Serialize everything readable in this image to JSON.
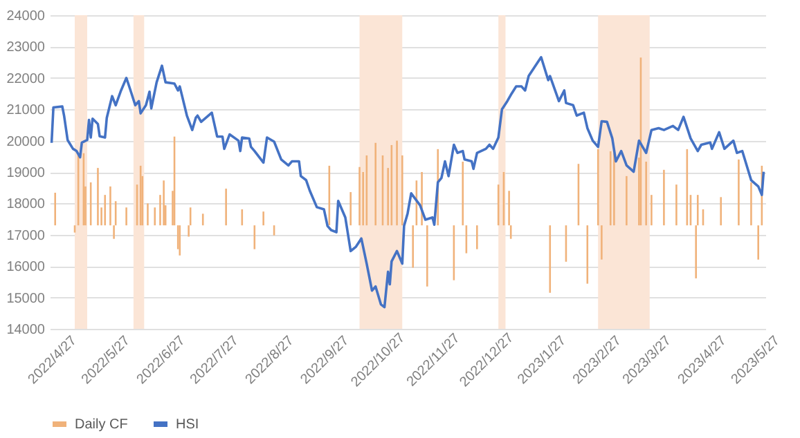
{
  "chart_data": {
    "type": "line",
    "xlim": [
      "2022-04-26",
      "2023-06-02"
    ],
    "xticks": [
      {
        "value": "2022-04-27",
        "label": "2022/4/27"
      },
      {
        "value": "2022-05-27",
        "label": "2022/5/27"
      },
      {
        "value": "2022-06-27",
        "label": "2022/6/27"
      },
      {
        "value": "2022-07-27",
        "label": "2022/7/27"
      },
      {
        "value": "2022-08-27",
        "label": "2022/8/27"
      },
      {
        "value": "2022-09-27",
        "label": "2022/9/27"
      },
      {
        "value": "2022-10-27",
        "label": "2022/10/27"
      },
      {
        "value": "2022-11-27",
        "label": "2022/11/27"
      },
      {
        "value": "2022-12-27",
        "label": "2022/12/27"
      },
      {
        "value": "2023-01-27",
        "label": "2023/1/27"
      },
      {
        "value": "2023-02-27",
        "label": "2023/2/27"
      },
      {
        "value": "2023-03-27",
        "label": "2023/3/27"
      },
      {
        "value": "2023-04-27",
        "label": "2023/4/27"
      },
      {
        "value": "2023-05-27",
        "label": "2023/5/27"
      }
    ],
    "ylim": [
      14000,
      24000
    ],
    "yticks": [
      14000,
      15000,
      16000,
      17000,
      18000,
      19000,
      20000,
      21000,
      22000,
      23000,
      24000
    ],
    "grid": "y",
    "legend": "bottom",
    "bands": [
      {
        "axis": "x",
        "from": "2022-05-10",
        "to": "2022-05-17",
        "color": "#fbe5d6"
      },
      {
        "axis": "x",
        "from": "2022-06-12",
        "to": "2022-06-18",
        "color": "#fbe5d6"
      },
      {
        "axis": "x",
        "from": "2022-10-17",
        "to": "2022-11-10",
        "color": "#fbe5d6"
      },
      {
        "axis": "x",
        "from": "2023-01-03",
        "to": "2023-01-07",
        "color": "#fbe5d6"
      },
      {
        "axis": "x",
        "from": "2023-02-28",
        "to": "2023-03-29",
        "color": "#fbe5d6"
      }
    ],
    "series": [
      {
        "name": "Daily CF",
        "type": "bar",
        "color": "#f0b27a",
        "x": [
          "2022-04-29",
          "2022-05-10",
          "2022-05-12",
          "2022-05-15",
          "2022-05-16",
          "2022-05-19",
          "2022-05-23",
          "2022-05-25",
          "2022-05-27",
          "2022-05-30",
          "2022-06-01",
          "2022-06-02",
          "2022-06-08",
          "2022-06-14",
          "2022-06-16",
          "2022-06-17",
          "2022-06-20",
          "2022-06-24",
          "2022-06-27",
          "2022-06-29",
          "2022-06-30",
          "2022-07-04",
          "2022-07-05",
          "2022-07-07",
          "2022-07-08",
          "2022-07-13",
          "2022-07-14",
          "2022-07-21",
          "2022-08-03",
          "2022-08-12",
          "2022-08-19",
          "2022-08-24",
          "2022-08-30",
          "2022-09-30",
          "2022-10-12",
          "2022-10-17",
          "2022-10-19",
          "2022-10-21",
          "2022-10-26",
          "2022-10-30",
          "2022-11-02",
          "2022-11-04",
          "2022-11-07",
          "2022-11-10",
          "2022-11-16",
          "2022-11-18",
          "2022-11-21",
          "2022-11-24",
          "2022-11-30",
          "2022-12-09",
          "2022-12-14",
          "2022-12-16",
          "2022-12-22",
          "2023-01-03",
          "2023-01-06",
          "2023-01-09",
          "2023-01-10",
          "2023-02-01",
          "2023-02-10",
          "2023-02-17",
          "2023-02-22",
          "2023-02-28",
          "2023-03-02",
          "2023-03-07",
          "2023-03-09",
          "2023-03-16",
          "2023-03-23",
          "2023-03-24",
          "2023-03-27",
          "2023-03-30",
          "2023-04-06",
          "2023-04-13",
          "2023-04-19",
          "2023-04-21",
          "2023-04-24",
          "2023-04-25",
          "2023-04-28",
          "2023-05-08",
          "2023-05-18",
          "2023-05-25",
          "2023-05-29",
          "2023-05-31"
        ],
        "base": [
          17300,
          17300,
          17300,
          17300,
          17300,
          17300,
          17300,
          17300,
          17300,
          17300,
          17300,
          17300,
          17300,
          17300,
          17300,
          17300,
          17300,
          17300,
          17300,
          17300,
          17300,
          17300,
          17300,
          17300,
          17300,
          17300,
          17300,
          17300,
          17300,
          17300,
          17300,
          17300,
          17300,
          17300,
          17300,
          17300,
          17300,
          17300,
          17300,
          17300,
          17300,
          17300,
          17300,
          17300,
          17300,
          17300,
          17300,
          17300,
          17300,
          17300,
          17300,
          17300,
          17300,
          17300,
          17300,
          17300,
          17300,
          17300,
          17300,
          17300,
          17300,
          17300,
          17300,
          17300,
          17300,
          17300,
          17300,
          17300,
          17300,
          17300,
          17300,
          17300,
          17300,
          17300,
          17300,
          17300,
          17300,
          17300,
          17300,
          17300,
          17300,
          17300
        ],
        "values": [
          1040,
          -230,
          2230,
          2300,
          1240,
          1370,
          1830,
          570,
          970,
          1240,
          -430,
          770,
          570,
          1300,
          1900,
          1570,
          700,
          570,
          970,
          1430,
          640,
          1100,
          2830,
          -760,
          -960,
          -360,
          570,
          370,
          1170,
          510,
          -760,
          440,
          -320,
          1900,
          1060,
          1860,
          1700,
          2230,
          2630,
          2230,
          1830,
          2560,
          2700,
          2230,
          -1350,
          1430,
          1700,
          -1950,
          2430,
          -1750,
          2030,
          -890,
          -760,
          1300,
          1700,
          1100,
          -430,
          -2150,
          -1160,
          1960,
          -1860,
          2430,
          -1090,
          2360,
          2300,
          1570,
          2160,
          5350,
          2030,
          970,
          1770,
          1300,
          2430,
          970,
          -1690,
          970,
          510,
          900,
          2100,
          1370,
          -1090,
          1900
        ]
      },
      {
        "name": "HSI",
        "color": "#4472c4",
        "x": [
          "2022-04-27",
          "2022-04-28",
          "2022-05-03",
          "2022-05-04",
          "2022-05-06",
          "2022-05-09",
          "2022-05-11",
          "2022-05-13",
          "2022-05-14",
          "2022-05-17",
          "2022-05-18",
          "2022-05-19",
          "2022-05-20",
          "2022-05-23",
          "2022-05-24",
          "2022-05-27",
          "2022-05-28",
          "2022-05-31",
          "2022-06-02",
          "2022-06-05",
          "2022-06-08",
          "2022-06-10",
          "2022-06-13",
          "2022-06-15",
          "2022-06-16",
          "2022-06-19",
          "2022-06-21",
          "2022-06-22",
          "2022-06-25",
          "2022-06-28",
          "2022-06-30",
          "2022-07-05",
          "2022-07-07",
          "2022-07-08",
          "2022-07-12",
          "2022-07-15",
          "2022-07-17",
          "2022-07-18",
          "2022-07-20",
          "2022-07-26",
          "2022-07-29",
          "2022-08-01",
          "2022-08-02",
          "2022-08-05",
          "2022-08-10",
          "2022-08-11",
          "2022-08-12",
          "2022-08-16",
          "2022-08-17",
          "2022-08-19",
          "2022-08-24",
          "2022-08-26",
          "2022-08-30",
          "2022-09-03",
          "2022-09-07",
          "2022-09-09",
          "2022-09-13",
          "2022-09-14",
          "2022-09-17",
          "2022-09-19",
          "2022-09-23",
          "2022-09-27",
          "2022-09-29",
          "2022-10-01",
          "2022-10-04",
          "2022-10-05",
          "2022-10-09",
          "2022-10-12",
          "2022-10-15",
          "2022-10-18",
          "2022-10-21",
          "2022-10-24",
          "2022-10-26",
          "2022-10-29",
          "2022-10-31",
          "2022-11-02",
          "2022-11-03",
          "2022-11-04",
          "2022-11-07",
          "2022-11-10",
          "2022-11-11",
          "2022-11-13",
          "2022-11-15",
          "2022-11-20",
          "2022-11-23",
          "2022-11-27",
          "2022-11-28",
          "2022-11-30",
          "2022-12-02",
          "2022-12-04",
          "2022-12-06",
          "2022-12-09",
          "2022-12-11",
          "2022-12-14",
          "2022-12-15",
          "2022-12-19",
          "2022-12-20",
          "2022-12-22",
          "2022-12-27",
          "2022-12-29",
          "2022-12-31",
          "2023-01-03",
          "2023-01-05",
          "2023-01-08",
          "2023-01-10",
          "2023-01-13",
          "2023-01-16",
          "2023-01-18",
          "2023-01-20",
          "2023-01-27",
          "2023-01-31",
          "2023-02-01",
          "2023-02-06",
          "2023-02-09",
          "2023-02-10",
          "2023-02-14",
          "2023-02-16",
          "2023-02-20",
          "2023-02-22",
          "2023-02-25",
          "2023-02-28",
          "2023-03-02",
          "2023-03-05",
          "2023-03-08",
          "2023-03-10",
          "2023-03-13",
          "2023-03-16",
          "2023-03-20",
          "2023-03-23",
          "2023-03-27",
          "2023-03-30",
          "2023-04-03",
          "2023-04-06",
          "2023-04-11",
          "2023-04-14",
          "2023-04-17",
          "2023-04-21",
          "2023-04-25",
          "2023-04-27",
          "2023-05-02",
          "2023-05-03",
          "2023-05-07",
          "2023-05-10",
          "2023-05-15",
          "2023-05-17",
          "2023-05-20",
          "2023-05-25",
          "2023-05-29",
          "2023-05-31",
          "2023-06-01"
        ],
        "values": [
          19930,
          21060,
          21090,
          20800,
          20020,
          19740,
          19670,
          19470,
          19940,
          20020,
          20660,
          20100,
          20700,
          20530,
          20140,
          20100,
          20730,
          21420,
          21130,
          21600,
          22000,
          21660,
          21130,
          21260,
          20870,
          21130,
          21560,
          21030,
          21860,
          22390,
          21860,
          21820,
          21600,
          21730,
          20800,
          20340,
          20730,
          20800,
          20600,
          20890,
          20130,
          20130,
          19740,
          20200,
          20000,
          19670,
          20100,
          20070,
          19800,
          19670,
          19300,
          20100,
          19970,
          19400,
          19210,
          19340,
          19340,
          18870,
          18740,
          18410,
          17880,
          17810,
          17280,
          17150,
          17080,
          18080,
          17550,
          16480,
          16620,
          16880,
          16080,
          15220,
          15350,
          14780,
          14690,
          15820,
          15420,
          16150,
          16480,
          16080,
          17280,
          17680,
          18320,
          17940,
          17480,
          17550,
          17320,
          18670,
          18810,
          19340,
          18870,
          19870,
          19610,
          19670,
          19400,
          19340,
          19100,
          19610,
          19740,
          19870,
          19740,
          20100,
          21000,
          21260,
          21460,
          21730,
          21730,
          21600,
          22060,
          22660,
          21930,
          22060,
          21260,
          21600,
          21200,
          21130,
          20800,
          20890,
          20400,
          20000,
          19800,
          20620,
          20600,
          20070,
          19340,
          19670,
          19210,
          19010,
          20000,
          19610,
          20340,
          20400,
          20340,
          20470,
          20340,
          20760,
          20070,
          19670,
          19870,
          19940,
          19740,
          20270,
          19740,
          20000,
          19610,
          19670,
          18740,
          18540,
          18270,
          19010
        ]
      }
    ]
  }
}
